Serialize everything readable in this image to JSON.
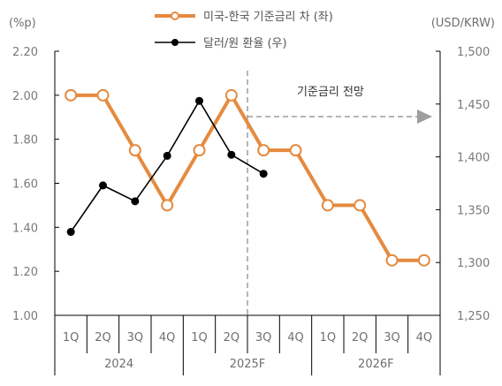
{
  "chart_data": {
    "type": "line",
    "left_axis": {
      "unit_label": "(%p)",
      "ylim": [
        1.0,
        2.2
      ],
      "ticks": [
        "1.00",
        "1.20",
        "1.40",
        "1.60",
        "1.80",
        "2.00",
        "2.20"
      ],
      "tick_values": [
        1.0,
        1.2,
        1.4,
        1.6,
        1.8,
        2.0,
        2.2
      ]
    },
    "right_axis": {
      "unit_label": "(USD/KRW)",
      "ylim": [
        1250,
        1500
      ],
      "ticks": [
        "1,250",
        "1,300",
        "1,350",
        "1,400",
        "1,450",
        "1,500"
      ],
      "tick_values": [
        1250,
        1300,
        1350,
        1400,
        1450,
        1500
      ]
    },
    "categories": [
      "1Q",
      "2Q",
      "3Q",
      "4Q",
      "1Q",
      "2Q",
      "3Q",
      "4Q",
      "1Q",
      "2Q",
      "3Q",
      "4Q"
    ],
    "year_groups": [
      {
        "label": "2024",
        "start": 0,
        "end": 3
      },
      {
        "label": "2025F",
        "start": 4,
        "end": 7
      },
      {
        "label": "2026F",
        "start": 8,
        "end": 11
      }
    ],
    "series": [
      {
        "name": "미국-한국 기준금리 차 (좌)",
        "axis": "left",
        "color": "#e58a3f",
        "marker": "open-circle",
        "values": [
          2.0,
          2.0,
          1.75,
          1.5,
          1.75,
          2.0,
          1.75,
          1.75,
          1.5,
          1.5,
          1.25,
          1.25
        ]
      },
      {
        "name": "달러/원 환율 (우)",
        "axis": "right",
        "color": "#000000",
        "marker": "filled-circle",
        "values": [
          1329,
          1373,
          1358,
          1401,
          1453,
          1402,
          1384,
          null,
          null,
          null,
          null,
          null
        ]
      }
    ],
    "annotation": {
      "text": "기준금리 전망",
      "divider_after_index": 5,
      "arrow_color": "#9e9e9e"
    },
    "legend_position": "top-center",
    "grid": false
  }
}
